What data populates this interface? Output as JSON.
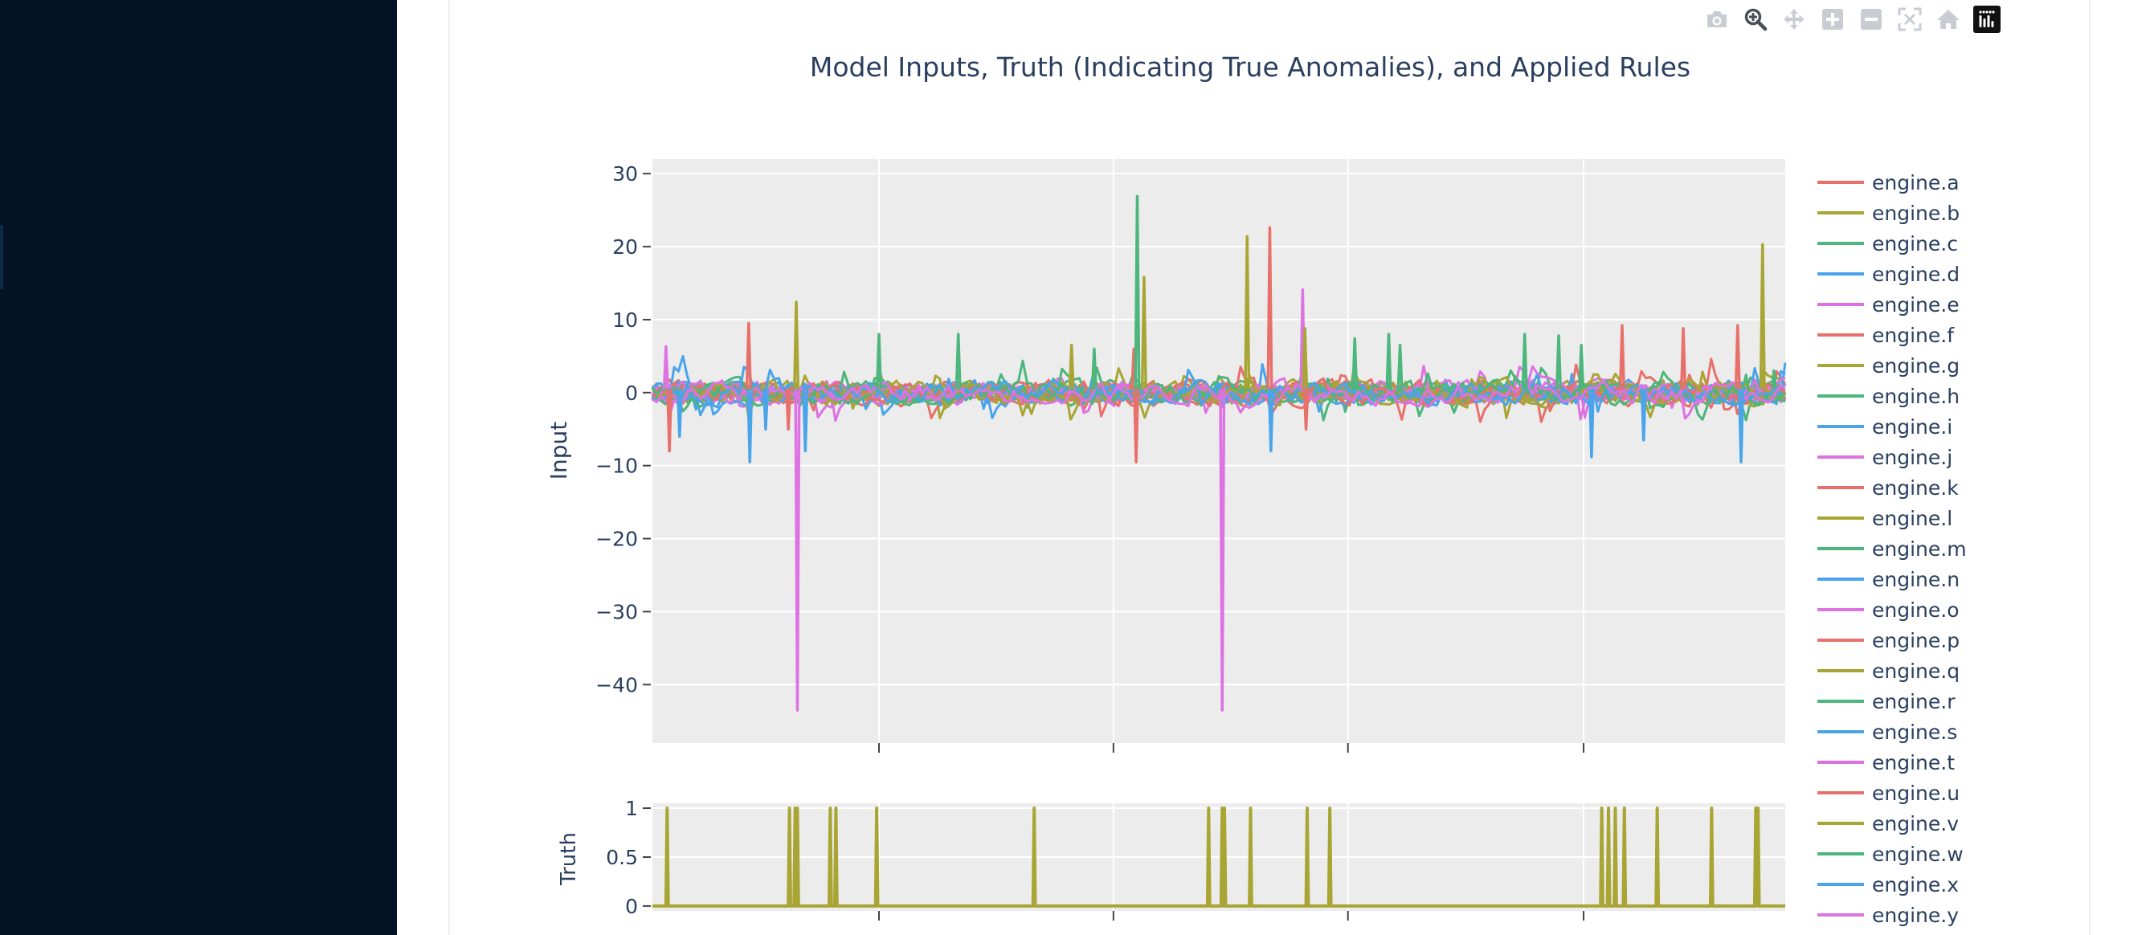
{
  "toolbar": {
    "buttons": [
      {
        "name": "camera-icon",
        "title": "Download plot as a png"
      },
      {
        "name": "zoom-icon",
        "title": "Zoom"
      },
      {
        "name": "pan-icon",
        "title": "Pan"
      },
      {
        "name": "zoom-in-icon",
        "title": "Zoom in"
      },
      {
        "name": "zoom-out-icon",
        "title": "Zoom out"
      },
      {
        "name": "autoscale-icon",
        "title": "Autoscale"
      },
      {
        "name": "home-icon",
        "title": "Reset axes"
      },
      {
        "name": "plotly-logo-icon",
        "title": "Produced with Plotly"
      }
    ]
  },
  "chart_data": [
    {
      "type": "line",
      "title": "Model Inputs, Truth (Indicating True Anomalies), and Applied Rules",
      "ylabel": "Input",
      "xlabel": "",
      "ylim": [
        -48,
        32
      ],
      "yticks": [
        30,
        20,
        10,
        0,
        -10,
        -20,
        -30,
        -40
      ],
      "grid": true,
      "legend": "right",
      "series_colors": [
        "#e8706a",
        "#a8a534",
        "#4cb67c",
        "#4aa4ea",
        "#dd72e3"
      ],
      "series": [
        {
          "name": "engine.a"
        },
        {
          "name": "engine.b"
        },
        {
          "name": "engine.c"
        },
        {
          "name": "engine.d"
        },
        {
          "name": "engine.e"
        },
        {
          "name": "engine.f"
        },
        {
          "name": "engine.g"
        },
        {
          "name": "engine.h"
        },
        {
          "name": "engine.i"
        },
        {
          "name": "engine.j"
        },
        {
          "name": "engine.k"
        },
        {
          "name": "engine.l"
        },
        {
          "name": "engine.m"
        },
        {
          "name": "engine.n"
        },
        {
          "name": "engine.o"
        },
        {
          "name": "engine.p"
        },
        {
          "name": "engine.q"
        },
        {
          "name": "engine.r"
        },
        {
          "name": "engine.s"
        },
        {
          "name": "engine.t"
        },
        {
          "name": "engine.u"
        },
        {
          "name": "engine.v"
        },
        {
          "name": "engine.w"
        },
        {
          "name": "engine.x"
        },
        {
          "name": "engine.y"
        }
      ],
      "x_range": [
        0,
        1000
      ],
      "spikes": [
        {
          "x": 12,
          "y": 6.3,
          "series": "engine.e"
        },
        {
          "x": 15,
          "y": -8,
          "series": "engine.a"
        },
        {
          "x": 24,
          "y": -6,
          "series": "engine.d"
        },
        {
          "x": 85,
          "y": 9.5,
          "series": "engine.a"
        },
        {
          "x": 86,
          "y": -9.5,
          "series": "engine.d"
        },
        {
          "x": 100,
          "y": -5,
          "series": "engine.d"
        },
        {
          "x": 120,
          "y": -5,
          "series": "engine.a"
        },
        {
          "x": 127,
          "y": 12.4,
          "series": "engine.b"
        },
        {
          "x": 128,
          "y": -43.5,
          "series": "engine.e"
        },
        {
          "x": 135,
          "y": -8,
          "series": "engine.d"
        },
        {
          "x": 200,
          "y": 8,
          "series": "engine.c"
        },
        {
          "x": 270,
          "y": 8,
          "series": "engine.c"
        },
        {
          "x": 370,
          "y": 6.5,
          "series": "engine.b"
        },
        {
          "x": 390,
          "y": 6,
          "series": "engine.c"
        },
        {
          "x": 425,
          "y": 6,
          "series": "engine.a"
        },
        {
          "x": 427,
          "y": -9.5,
          "series": "engine.a"
        },
        {
          "x": 428,
          "y": 26.9,
          "series": "engine.c"
        },
        {
          "x": 434,
          "y": 15.8,
          "series": "engine.b"
        },
        {
          "x": 503,
          "y": -43.5,
          "series": "engine.e"
        },
        {
          "x": 525,
          "y": 21.4,
          "series": "engine.b"
        },
        {
          "x": 545,
          "y": 22.6,
          "series": "engine.a"
        },
        {
          "x": 546,
          "y": -8,
          "series": "engine.d"
        },
        {
          "x": 574,
          "y": 14.1,
          "series": "engine.e"
        },
        {
          "x": 576,
          "y": 8.8,
          "series": "engine.b"
        },
        {
          "x": 577,
          "y": -5,
          "series": "engine.a"
        },
        {
          "x": 620,
          "y": 7.4,
          "series": "engine.c"
        },
        {
          "x": 650,
          "y": 8,
          "series": "engine.c"
        },
        {
          "x": 660,
          "y": 6.5,
          "series": "engine.c"
        },
        {
          "x": 770,
          "y": 8,
          "series": "engine.c"
        },
        {
          "x": 800,
          "y": 7.8,
          "series": "engine.c"
        },
        {
          "x": 820,
          "y": 6.5,
          "series": "engine.c"
        },
        {
          "x": 829,
          "y": -8.8,
          "series": "engine.d"
        },
        {
          "x": 856,
          "y": 9.2,
          "series": "engine.a"
        },
        {
          "x": 875,
          "y": -6.5,
          "series": "engine.d"
        },
        {
          "x": 910,
          "y": 8.8,
          "series": "engine.a"
        },
        {
          "x": 958,
          "y": 9.2,
          "series": "engine.a"
        },
        {
          "x": 961,
          "y": -9.5,
          "series": "engine.d"
        },
        {
          "x": 980,
          "y": 20.3,
          "series": "engine.b"
        },
        {
          "x": 990,
          "y": 3,
          "series": "engine.c"
        }
      ]
    },
    {
      "type": "line",
      "title": "",
      "ylabel": "Truth",
      "xlabel": "",
      "ylim": [
        -0.05,
        1.05
      ],
      "yticks": [
        1,
        0.5,
        0
      ],
      "grid": true,
      "color": "#a8a534",
      "x_range": [
        0,
        1000
      ],
      "anomalies_at": [
        13,
        121,
        126,
        128,
        157,
        162,
        198,
        337,
        491,
        503,
        505,
        528,
        578,
        598,
        838,
        844,
        850,
        858,
        887,
        935,
        974,
        976
      ]
    }
  ]
}
